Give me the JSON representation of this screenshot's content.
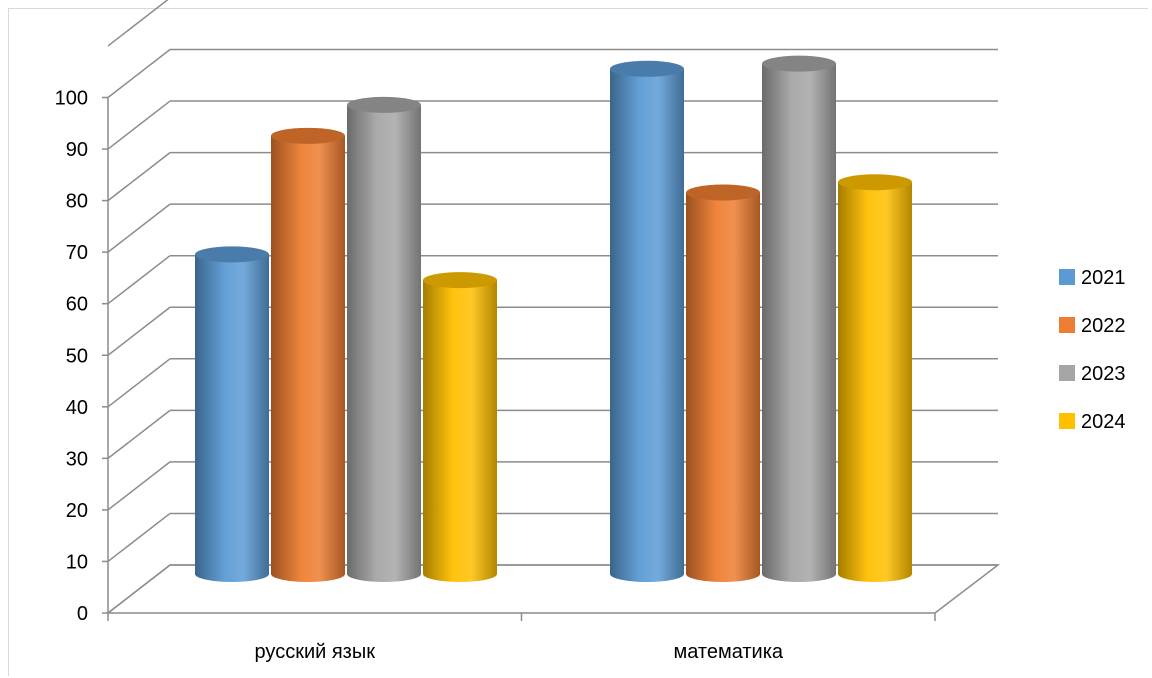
{
  "chart_data": {
    "type": "bar",
    "style": "3d-cylinder",
    "categories": [
      "русский язык",
      "математика"
    ],
    "series": [
      {
        "name": "2021",
        "color": "#5b9bd5",
        "values": [
          62,
          98
        ]
      },
      {
        "name": "2022",
        "color": "#ed7d31",
        "values": [
          85,
          74
        ]
      },
      {
        "name": "2023",
        "color": "#a5a5a5",
        "values": [
          91,
          99
        ]
      },
      {
        "name": "2024",
        "color": "#ffc000",
        "values": [
          57,
          76
        ]
      }
    ],
    "yticks": [
      "0",
      "10",
      "20",
      "30",
      "40",
      "50",
      "60",
      "70",
      "80",
      "90",
      "100"
    ],
    "ylim": [
      0,
      100
    ],
    "grid": true,
    "legend": "right"
  }
}
